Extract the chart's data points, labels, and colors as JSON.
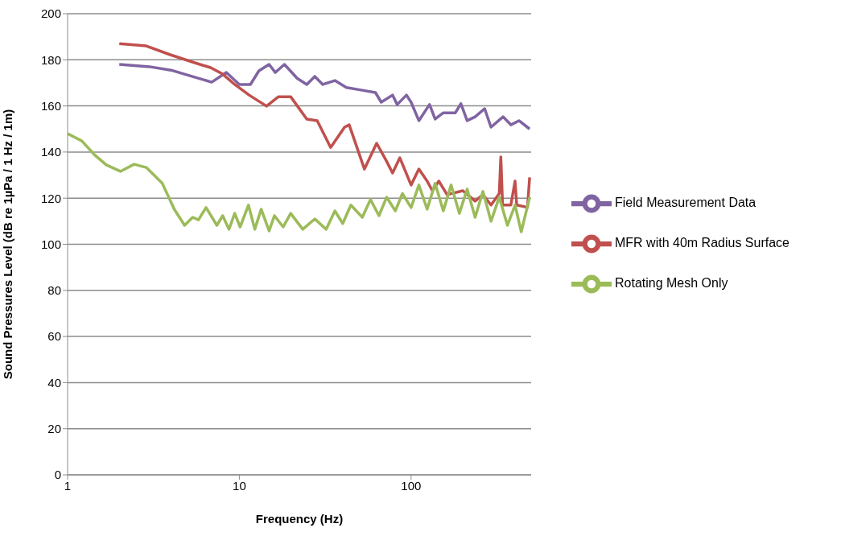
{
  "chart_data": {
    "type": "line",
    "xlabel": "Frequency (Hz)",
    "ylabel": "Sound Pressures Level (dB re 1µPa / 1 Hz / 1m)",
    "log": "x",
    "xlim": [
      1,
      500
    ],
    "xticks": [
      1,
      10,
      100
    ],
    "ylim": [
      0,
      200
    ],
    "yticks": [
      0,
      20,
      40,
      60,
      80,
      100,
      120,
      140,
      160,
      180,
      200
    ],
    "grid": "y",
    "legend": "right",
    "marker": "none",
    "line_style": "solid",
    "series": [
      {
        "name": "Field Measurement Data",
        "color": "#8064a2",
        "x": [
          2,
          3,
          4,
          5.2,
          6.9,
          8.4,
          10,
          11.6,
          13,
          14.9,
          16.2,
          18.3,
          21.7,
          24.7,
          27.5,
          30.6,
          36,
          42,
          52,
          62,
          67,
          78,
          83,
          94,
          100,
          111,
          128,
          138,
          154,
          181,
          195,
          212,
          236,
          268,
          292,
          343,
          381,
          425,
          490
        ],
        "values": [
          178,
          177,
          175.5,
          173,
          170.3,
          174.5,
          169.3,
          169.3,
          175.2,
          178,
          174.5,
          178,
          172,
          169.3,
          172.8,
          169.3,
          171,
          168,
          166.8,
          165.8,
          161.6,
          164.7,
          160.6,
          164.7,
          161.6,
          153.6,
          160.6,
          154.3,
          157,
          157,
          161,
          153.6,
          155.3,
          158.8,
          150.8,
          155.3,
          151.8,
          153.6,
          150
        ]
      },
      {
        "name": "MFR with 40m Radius Surface",
        "color": "#c0504d",
        "x": [
          2,
          2.87,
          3.96,
          5.5,
          6.8,
          8,
          9.4,
          11.4,
          14.4,
          16.9,
          19.9,
          24.7,
          28.4,
          34,
          41,
          43.6,
          53.5,
          63,
          72,
          78,
          86,
          100,
          111,
          124,
          133,
          145,
          162,
          200,
          236,
          262,
          292,
          326,
          333,
          341,
          381,
          403,
          412,
          476,
          490
        ],
        "values": [
          187,
          186,
          182.2,
          178.7,
          176.6,
          173.8,
          169.3,
          164.7,
          159.9,
          164,
          164,
          154.3,
          153.6,
          142,
          150.8,
          151.8,
          132.6,
          143.8,
          136,
          130.9,
          137.5,
          125.7,
          132.6,
          127.4,
          123.2,
          127.4,
          121.5,
          123.2,
          118.7,
          121.5,
          117,
          122,
          137.9,
          117,
          117,
          127.4,
          117,
          116,
          129
        ]
      },
      {
        "name": "Rotating Mesh Only",
        "color": "#9bbb59",
        "x": [
          1,
          1.21,
          1.43,
          1.68,
          2.03,
          2.44,
          2.87,
          3.56,
          4.18,
          4.8,
          5.35,
          5.78,
          6.4,
          7.4,
          8,
          8.7,
          9.4,
          10.1,
          11.3,
          12.3,
          13.4,
          14.9,
          16,
          18,
          19.9,
          23.4,
          27.5,
          32,
          36,
          40,
          44.6,
          52,
          58,
          65,
          72,
          81,
          89,
          100,
          111,
          124,
          138,
          154,
          171,
          191,
          212,
          236,
          262,
          292,
          326,
          364,
          403,
          438,
          490
        ],
        "values": [
          148,
          144.8,
          138.9,
          134.4,
          131.6,
          134.7,
          133.3,
          126.4,
          115.2,
          108.2,
          111.7,
          110.6,
          115.9,
          108.2,
          112.4,
          106.5,
          113.4,
          107.5,
          117,
          106.5,
          115.2,
          105.8,
          112.4,
          107.5,
          113.4,
          106.5,
          111,
          106.5,
          114.5,
          109,
          117,
          111.7,
          119.4,
          112.4,
          120.4,
          114.5,
          122,
          115.9,
          125.7,
          115.2,
          126.4,
          114.5,
          125.7,
          113.4,
          123.9,
          111.7,
          122.9,
          110,
          120.4,
          108.2,
          117,
          105.4,
          120.4
        ]
      }
    ]
  }
}
